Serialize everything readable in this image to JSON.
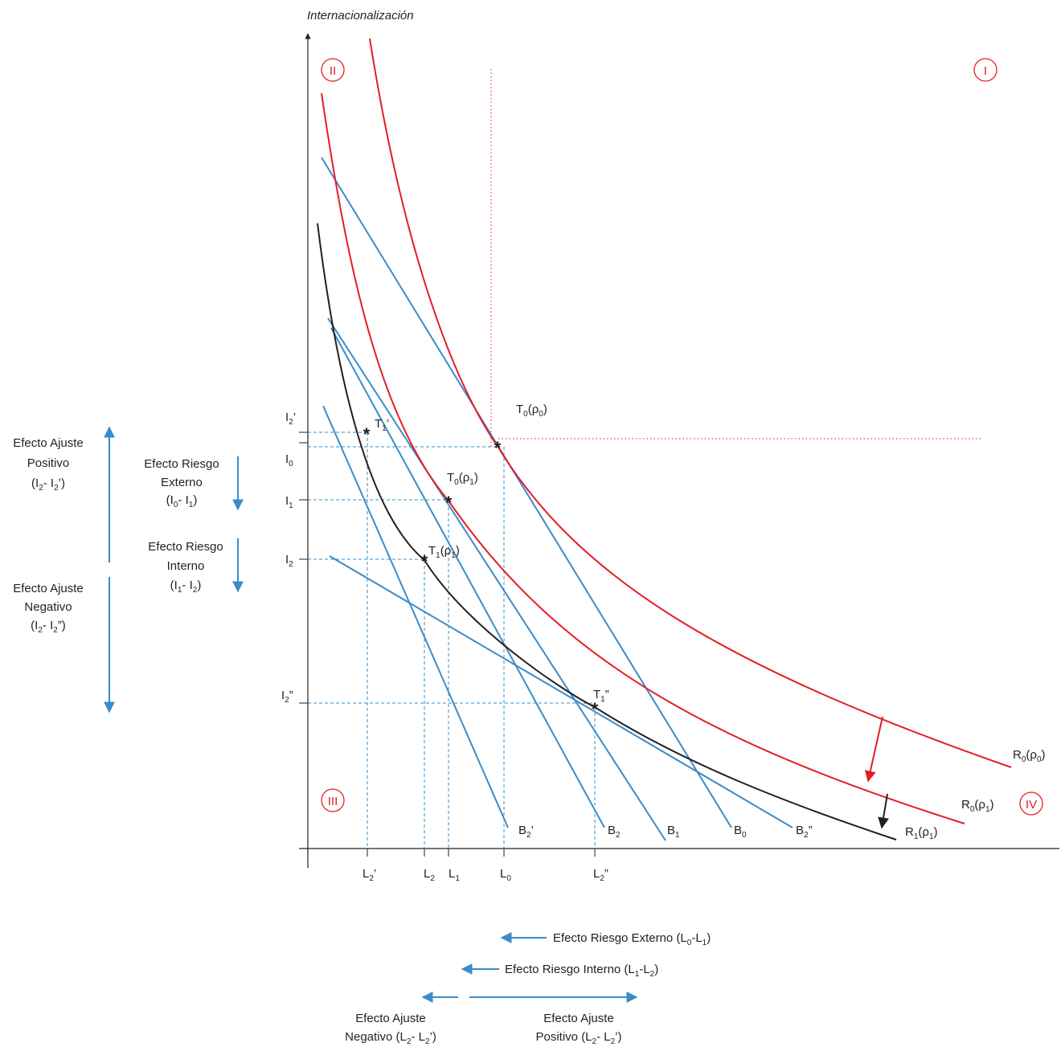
{
  "colors": {
    "red": "#e31e24",
    "blue": "#3a8cc9",
    "black": "#231f20",
    "dash_blue": "#3a8cc9"
  },
  "axis": {
    "y_title": "Internacionalización"
  },
  "quadrants": {
    "q1": "I",
    "q2": "II",
    "q3": "III",
    "q4": "IV"
  },
  "points": {
    "t0p0": [
      "T",
      "0",
      "(ρ",
      "0",
      ")"
    ],
    "t0p1": [
      "T",
      "0",
      "(ρ",
      "1",
      ")"
    ],
    "t1p1": [
      "T",
      "1",
      "(ρ",
      "1",
      ")"
    ],
    "t1p": [
      "T",
      "1",
      "’"
    ],
    "t1pp": [
      "T",
      "1",
      "”"
    ]
  },
  "curves": {
    "r0p0": [
      "R",
      "0",
      "(ρ",
      "0",
      ")"
    ],
    "r0p1": [
      "R",
      "0",
      "(ρ",
      "1",
      ")"
    ],
    "r1p1": [
      "R",
      "1",
      "(ρ",
      "1",
      ")"
    ]
  },
  "lines": {
    "b2p": [
      "B",
      "2",
      "’"
    ],
    "b2": [
      "B",
      "2",
      ""
    ],
    "b1": [
      "B",
      "1",
      ""
    ],
    "b0": [
      "B",
      "0",
      ""
    ],
    "b2pp": [
      "B",
      "2",
      "”"
    ]
  },
  "y_ticks": {
    "i2p": [
      "I",
      "2",
      "’"
    ],
    "i0": [
      "I",
      "0",
      ""
    ],
    "i1": [
      "I",
      "1",
      ""
    ],
    "i2": [
      "I",
      "2",
      ""
    ],
    "i2pp": [
      "I",
      "2",
      "”"
    ]
  },
  "x_ticks": {
    "l2p": [
      "L",
      "2",
      "’"
    ],
    "l2": [
      "L",
      "2",
      ""
    ],
    "l1": [
      "L",
      "1",
      ""
    ],
    "l0": [
      "L",
      "0",
      ""
    ],
    "l2pp": [
      "L",
      "2",
      "”"
    ]
  },
  "left_effects": {
    "ajuste_pos": {
      "line1": "Efecto Ajuste",
      "line2": "Positivo",
      "f": [
        "(I",
        "2",
        "- I",
        "2",
        "’)"
      ]
    },
    "ajuste_neg": {
      "line1": "Efecto Ajuste",
      "line2": "Negativo",
      "f": [
        "(I",
        "2",
        "- I",
        "2",
        "”)"
      ]
    },
    "riesgo_ext": {
      "line1": "Efecto Riesgo",
      "line2": "Externo",
      "f": [
        "(I",
        "0",
        "- I",
        "1",
        ")"
      ]
    },
    "riesgo_int": {
      "line1": "Efecto Riesgo",
      "line2": "Interno",
      "f": [
        "(I",
        "1",
        "- I",
        "2",
        ")"
      ]
    }
  },
  "bottom_effects": {
    "riesgo_ext": [
      "Efecto Riesgo  Externo (L",
      "0",
      "-L",
      "1",
      ")"
    ],
    "riesgo_int": [
      "Efecto Riesgo Interno (L",
      "1",
      "-L",
      "2",
      ")"
    ],
    "ajuste_neg": {
      "line1": "Efecto Ajuste",
      "f": [
        "Negativo (L",
        "2",
        "- L",
        "2",
        "’)"
      ]
    },
    "ajuste_pos": {
      "line1": "Efecto Ajuste",
      "f": [
        "Positivo (L",
        "2",
        "- L",
        "2",
        "’)"
      ]
    }
  }
}
